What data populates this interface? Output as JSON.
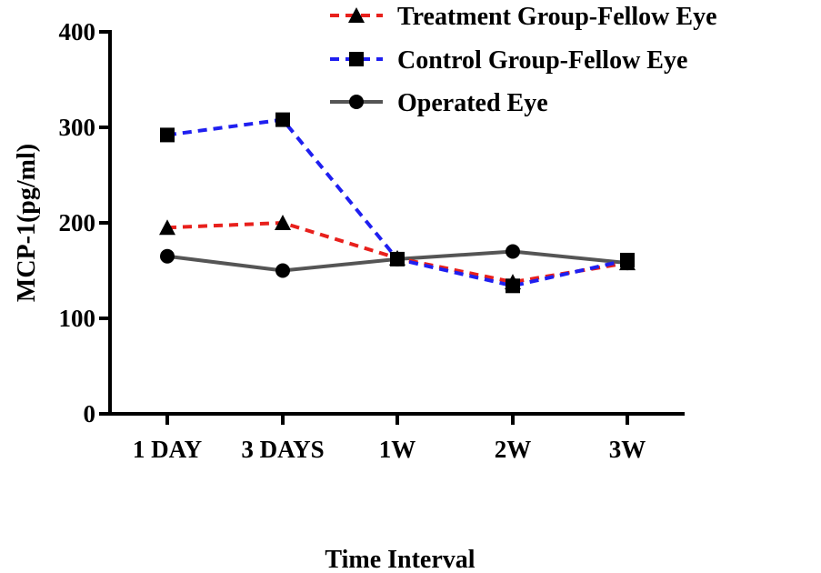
{
  "chart_data": {
    "type": "line",
    "title": "",
    "xlabel": "Time Interval",
    "ylabel": "MCP-1(pg/ml)",
    "categories": [
      "1 DAY",
      "3 DAYS",
      "1W",
      "2W",
      "3W"
    ],
    "ylim": [
      0,
      400
    ],
    "yticks": [
      0,
      100,
      200,
      300,
      400
    ],
    "grid": false,
    "legend_position": "top-right",
    "series": [
      {
        "name": "Treatment Group-Fellow Eye",
        "values": [
          195,
          200,
          163,
          138,
          158
        ],
        "color": "#e8201c",
        "marker": "triangle",
        "line_style": "dashed"
      },
      {
        "name": "Control Group-Fellow Eye",
        "values": [
          292,
          308,
          162,
          134,
          161
        ],
        "color": "#1f1ff0",
        "marker": "square",
        "line_style": "dashed"
      },
      {
        "name": "Operated Eye",
        "values": [
          165,
          150,
          162,
          170,
          158
        ],
        "color": "#555555",
        "marker": "circle",
        "line_style": "solid"
      }
    ]
  }
}
